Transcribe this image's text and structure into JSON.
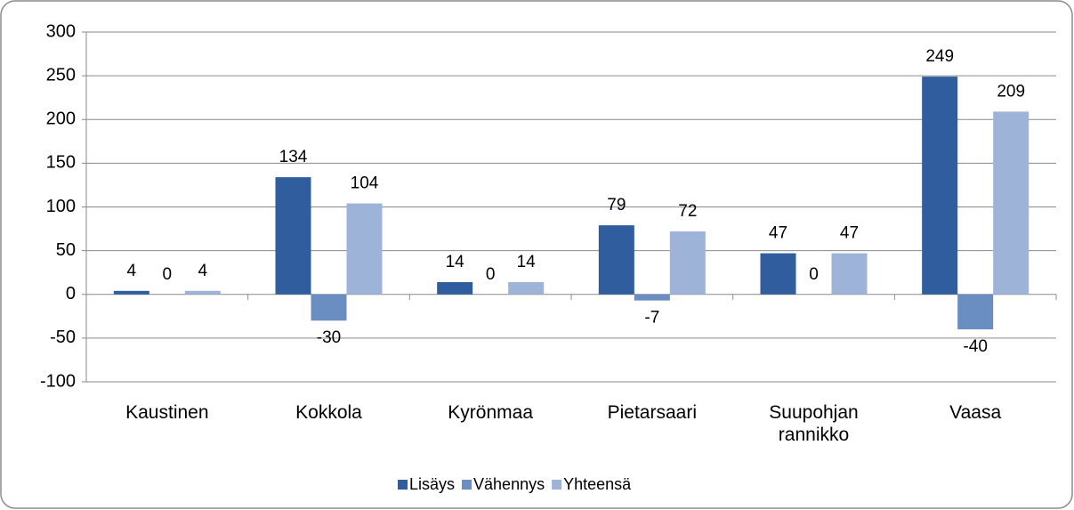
{
  "chart_data": {
    "type": "bar",
    "categories": [
      "Kaustinen",
      "Kokkola",
      "Kyrönmaa",
      "Pietarsaari",
      "Suupohjan rannikko",
      "Vaasa"
    ],
    "series": [
      {
        "name": "Lisäys",
        "color": "#2f5d9e",
        "values": [
          4,
          134,
          14,
          79,
          47,
          249
        ]
      },
      {
        "name": "Vähennys",
        "color": "#6a8dc2",
        "values": [
          0,
          -30,
          0,
          -7,
          0,
          -40
        ]
      },
      {
        "name": "Yhteensä",
        "color": "#9db3d7",
        "values": [
          4,
          104,
          14,
          72,
          47,
          209
        ]
      }
    ],
    "ylim": [
      -100,
      300
    ],
    "yticks": [
      -100,
      -50,
      0,
      50,
      100,
      150,
      200,
      250,
      300
    ],
    "grid": true,
    "legend": "bottom"
  }
}
